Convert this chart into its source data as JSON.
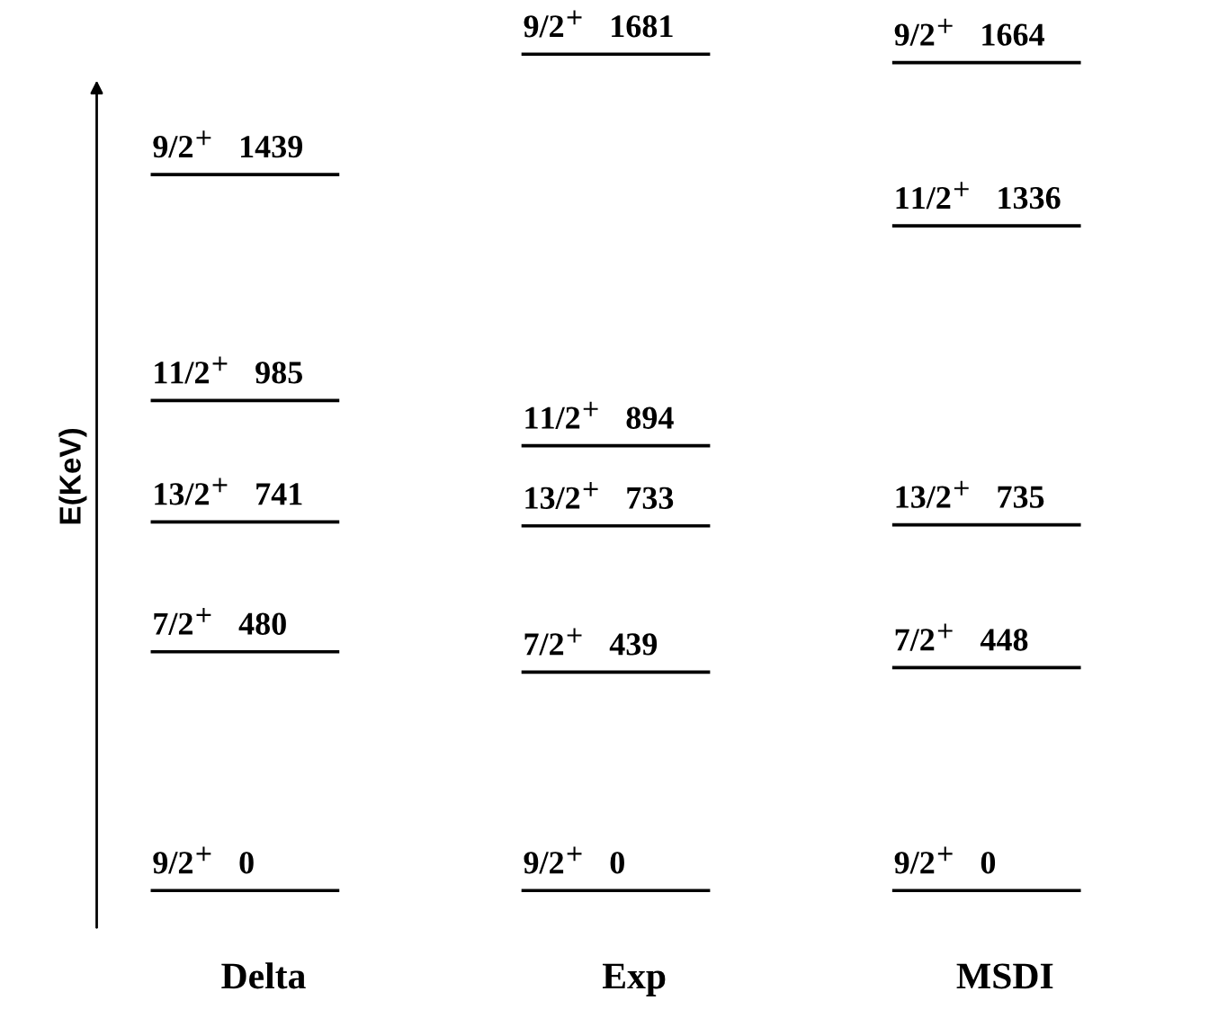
{
  "chart_data": {
    "type": "other",
    "ylabel": "E(KeV)",
    "categories": [
      "Delta",
      "Exp",
      "MSDI"
    ],
    "data_labels": true,
    "series": [
      {
        "name": "9/2$^{+}$",
        "color": "#000000",
        "values": [
          0,
          0,
          0
        ]
      },
      {
        "name": "7/2$^{+}$",
        "color": "#000000",
        "values": [
          480,
          439,
          448
        ]
      },
      {
        "name": "13/2$^{+}$",
        "color": "#000000",
        "values": [
          741,
          733,
          735
        ]
      },
      {
        "name": "11/2$^{+}$",
        "color": "#000000",
        "values": [
          985,
          894,
          1336
        ]
      },
      {
        "name": "9/2$^{+}$",
        "color": "#000000",
        "values": [
          1439,
          1681,
          1664
        ]
      }
    ]
  }
}
